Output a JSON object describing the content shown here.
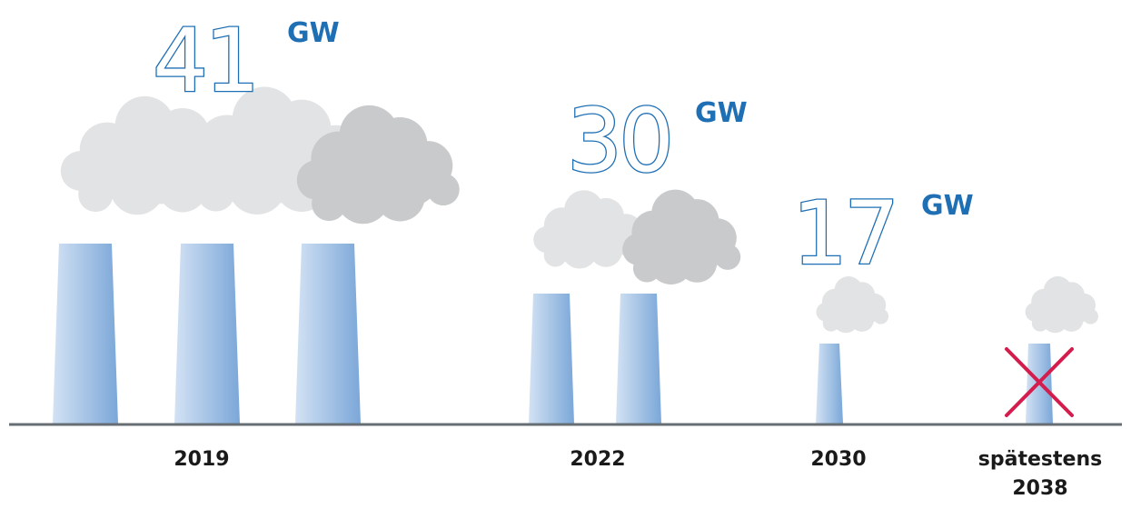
{
  "chart_data": {
    "type": "pictogram",
    "categories": [
      "2019",
      "2022",
      "2030",
      "spätestens 2038"
    ],
    "category_lines": [
      [
        "2019"
      ],
      [
        "2022"
      ],
      [
        "2030"
      ],
      [
        "spätestens",
        "2038"
      ]
    ],
    "values": [
      41,
      30,
      17,
      0
    ],
    "value_labels": [
      "41",
      "30",
      "17",
      ""
    ],
    "unit": "GW",
    "chimney_counts": [
      3,
      2,
      1,
      1
    ],
    "crossed_out": [
      false,
      false,
      false,
      true
    ],
    "colors": {
      "accent": "#1f6fb4",
      "chimney_light": "#d3e2f4",
      "chimney_dark": "#7ba7d8",
      "smoke_light": "#e2e3e4",
      "smoke_dark": "#c9cacc",
      "ground": "#666d73",
      "cross": "#d41c4d"
    }
  }
}
